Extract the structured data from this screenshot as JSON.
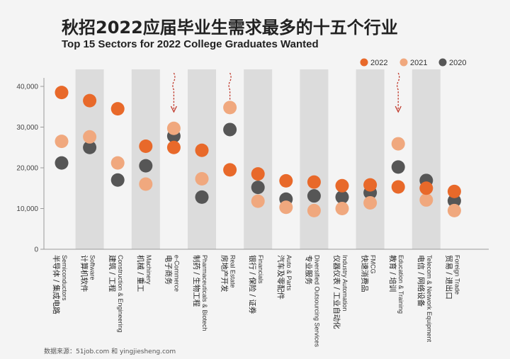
{
  "title_cn": "秋招2022应届毕业生需求最多的十五个行业",
  "title_en": "Top 15 Sectors for 2022 College Graduates Wanted",
  "source": "数据来源：51job.com 和 yingjiesheng.com",
  "colors": {
    "2022": "#e8692a",
    "2021": "#f0a87e",
    "2020": "#565656",
    "band": "#dcdcdc",
    "arrow": "#c0392b"
  },
  "chart_data": {
    "type": "scatter",
    "ylim": [
      0,
      40000
    ],
    "yticks": [
      "40,000",
      "30,000",
      "20,000",
      "10,000",
      "0"
    ],
    "yticks_values": [
      40000,
      30000,
      20000,
      10000,
      0
    ],
    "legend": [
      "2022",
      "2021",
      "2020"
    ],
    "legend_placement": "top-right",
    "categories": [
      {
        "en": "Semiconductors",
        "cn": "半导体 / 集成电路"
      },
      {
        "en": "Software",
        "cn": "计算机软件"
      },
      {
        "en": "Construction & Engineering",
        "cn": "建筑 / 工程"
      },
      {
        "en": "Machinery",
        "cn": "机械 / 重工"
      },
      {
        "en": "e-Commerce",
        "cn": "电子商务"
      },
      {
        "en": "Pharmaceuticals & Biotech",
        "cn": "制药 / 生物工程"
      },
      {
        "en": "Real Estate",
        "cn": "房地产开发"
      },
      {
        "en": "Financials",
        "cn": "银行 / 保险 / 证券"
      },
      {
        "en": "Auto & Parts",
        "cn": "汽车及零配件"
      },
      {
        "en": "Diversified Outsourcing Services",
        "cn": "专业服务"
      },
      {
        "en": "Industry Automation",
        "cn": "仪器仪表 / 工业自动化"
      },
      {
        "en": "FMCG",
        "cn": "快速消费品"
      },
      {
        "en": "Education & Training",
        "cn": "教育 / 培训"
      },
      {
        "en": "Telecom & Network Equipment",
        "cn": "电信 / 网络设备"
      },
      {
        "en": "Foreign Trade",
        "cn": "贸易 / 进出口"
      }
    ],
    "series": [
      {
        "name": "2022",
        "values": [
          38500,
          36500,
          34500,
          25300,
          25000,
          24300,
          19500,
          18500,
          16800,
          16500,
          15600,
          15800,
          15300,
          15000,
          14200
        ]
      },
      {
        "name": "2021",
        "values": [
          26500,
          27600,
          21200,
          16000,
          29700,
          17300,
          34800,
          11800,
          10300,
          9500,
          10000,
          11400,
          25900,
          12100,
          9500
        ]
      },
      {
        "name": "2020",
        "values": [
          21200,
          25000,
          17000,
          20500,
          27800,
          12800,
          29400,
          15200,
          12300,
          13100,
          12800,
          13900,
          20200,
          16900,
          11900
        ]
      }
    ],
    "arrows_above_categories": [
      "e-Commerce",
      "Real Estate",
      "Education & Training"
    ]
  }
}
